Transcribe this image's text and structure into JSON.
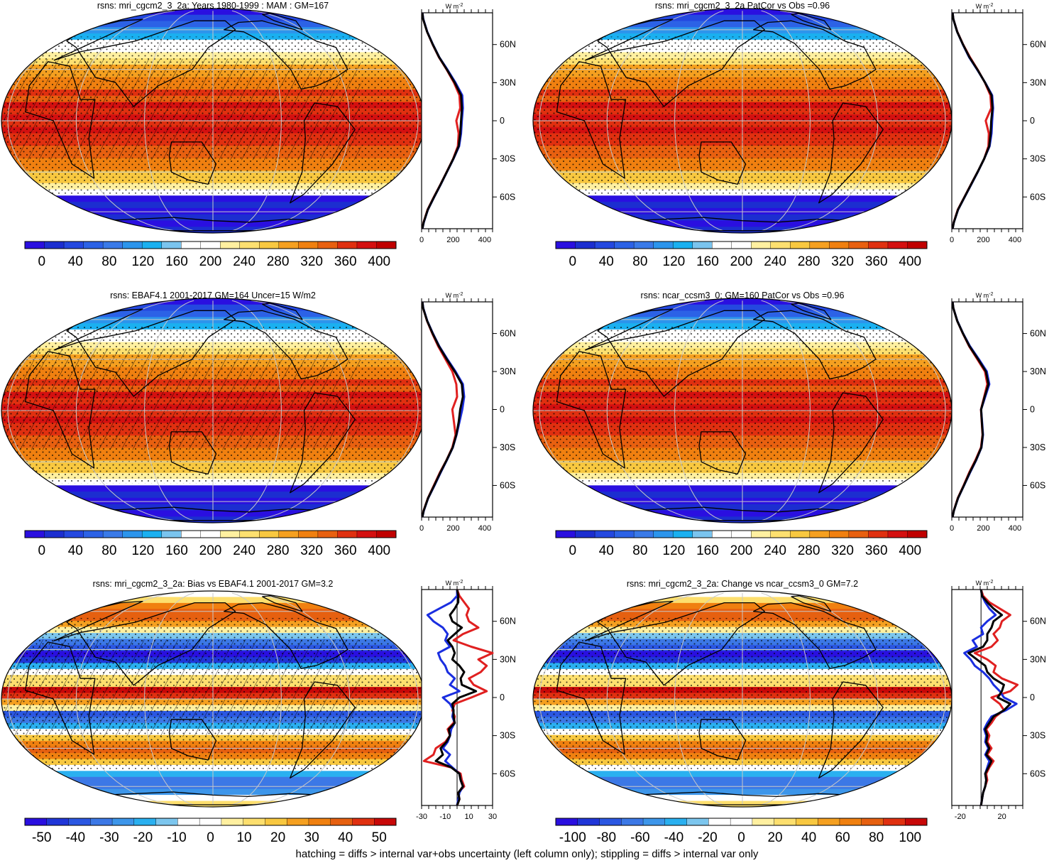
{
  "figure": {
    "footnote": "hatching = diffs > internal var+obs uncertainty (left column only); stippling = diffs > internal var only",
    "profile_units": "W m",
    "profile_units_exp": "-2"
  },
  "palette": {
    "abs": [
      "#2a0fe0",
      "#1c2ed0",
      "#2448e0",
      "#2c62e6",
      "#3a7ae8",
      "#2c95ec",
      "#1ab0f0",
      "#7ac4ee",
      "#ffffff",
      "#ffffff",
      "#fff0a0",
      "#fde070",
      "#f8c840",
      "#f5a020",
      "#f08010",
      "#e86010",
      "#e03010",
      "#d41010",
      "#c00000"
    ],
    "diff": [
      "#2a0fe0",
      "#2036d8",
      "#2b57e2",
      "#3c78e6",
      "#3d96ea",
      "#2ab0f0",
      "#7cc6ee",
      "#ffffff",
      "#ffffff",
      "#fff0a0",
      "#fddf6e",
      "#f8c840",
      "#f5a020",
      "#f08010",
      "#e66010",
      "#e03010",
      "#c80808"
    ]
  },
  "chart_data": [
    {
      "type": "heatmap",
      "id": "p1",
      "title": "rsns: mri_cgcm2_3_2a: Years 1980-1999 : MAM : GM=167",
      "colorbar": {
        "ticks": [
          "0",
          "40",
          "80",
          "120",
          "160",
          "200",
          "240",
          "280",
          "320",
          "360",
          "400"
        ],
        "vmin": -20,
        "vmax": 420
      },
      "hatched": true,
      "profile": {
        "xticks": [
          "0",
          "200",
          "400"
        ],
        "xlim": [
          0,
          450
        ],
        "yticks": [
          "60N",
          "30N",
          "0",
          "30S",
          "60S"
        ],
        "ylim": [
          -85,
          85
        ],
        "lat": [
          -85,
          -80,
          -70,
          -60,
          -50,
          -40,
          -30,
          -20,
          -10,
          0,
          10,
          20,
          30,
          40,
          50,
          60,
          70,
          80,
          85
        ],
        "series": [
          {
            "color": "#e02020",
            "values": [
              5,
              12,
              38,
              78,
              120,
              160,
              200,
              230,
              235,
              220,
              245,
              240,
              205,
              160,
              110,
              70,
              35,
              10,
              5
            ]
          },
          {
            "color": "#1a2ee0",
            "values": [
              5,
              14,
              40,
              80,
              122,
              162,
              202,
              238,
              250,
              255,
              262,
              258,
              215,
              165,
              112,
              72,
              36,
              11,
              5
            ]
          },
          {
            "color": "#000000",
            "values": [
              5,
              13,
              39,
              79,
              121,
              161,
              201,
              235,
              245,
              250,
              255,
              250,
              210,
              162,
              111,
              71,
              35,
              10,
              5
            ]
          }
        ]
      }
    },
    {
      "type": "heatmap",
      "id": "p2",
      "title": "rsns: mri_cgcm2_3_2a PatCor vs Obs =0.96",
      "colorbar": {
        "ticks": [
          "0",
          "40",
          "80",
          "120",
          "160",
          "200",
          "240",
          "280",
          "320",
          "360",
          "400"
        ],
        "vmin": -20,
        "vmax": 420
      },
      "hatched": false,
      "profile": {
        "xticks": [
          "0",
          "200",
          "400"
        ],
        "xlim": [
          0,
          450
        ],
        "yticks": [
          "60N",
          "30N",
          "0",
          "30S",
          "60S"
        ],
        "ylim": [
          -85,
          85
        ],
        "lat": [
          -85,
          -80,
          -70,
          -60,
          -50,
          -40,
          -30,
          -20,
          -10,
          0,
          10,
          20,
          30,
          40,
          50,
          60,
          70,
          80,
          85
        ],
        "series": [
          {
            "color": "#e02020",
            "values": [
              5,
              12,
              38,
              80,
              122,
              165,
              205,
              232,
              235,
              215,
              250,
              245,
              210,
              165,
              115,
              72,
              35,
              10,
              5
            ]
          },
          {
            "color": "#1a2ee0",
            "values": [
              5,
              13,
              40,
              82,
              124,
              166,
              205,
              240,
              252,
              256,
              262,
              256,
              212,
              162,
              110,
              70,
              34,
              10,
              5
            ]
          },
          {
            "color": "#000000",
            "values": [
              5,
              13,
              39,
              81,
              123,
              165,
              205,
              237,
              246,
              250,
              258,
              252,
              211,
              164,
              112,
              71,
              34,
              10,
              5
            ]
          }
        ]
      }
    },
    {
      "type": "heatmap",
      "id": "p3",
      "title": "rsns: EBAF4.1 2001-2017 GM=164 Uncer=15 W/m2",
      "colorbar": {
        "ticks": [
          "0",
          "40",
          "80",
          "120",
          "160",
          "200",
          "240",
          "280",
          "320",
          "360",
          "400"
        ],
        "vmin": -20,
        "vmax": 420
      },
      "hatched": true,
      "profile": {
        "xticks": [
          "0",
          "200",
          "400"
        ],
        "xlim": [
          0,
          450
        ],
        "yticks": [
          "60N",
          "30N",
          "0",
          "30S",
          "60S"
        ],
        "ylim": [
          -85,
          85
        ],
        "lat": [
          -85,
          -80,
          -70,
          -60,
          -50,
          -40,
          -30,
          -20,
          -10,
          0,
          10,
          20,
          30,
          40,
          50,
          60,
          70,
          80,
          85
        ],
        "series": [
          {
            "color": "#e02020",
            "values": [
              5,
              12,
              40,
              78,
              115,
              158,
              195,
              215,
              205,
              195,
              225,
              220,
              195,
              150,
              105,
              68,
              34,
              10,
              5
            ]
          },
          {
            "color": "#1a2ee0",
            "values": [
              5,
              14,
              42,
              82,
              120,
              160,
              198,
              222,
              240,
              258,
              270,
              262,
              215,
              162,
              112,
              72,
              36,
              11,
              5
            ]
          },
          {
            "color": "#000000",
            "values": [
              5,
              13,
              41,
              80,
              118,
              159,
              197,
              220,
              235,
              245,
              262,
              255,
              210,
              158,
              110,
              70,
              35,
              10,
              5
            ]
          }
        ]
      }
    },
    {
      "type": "heatmap",
      "id": "p4",
      "title": "rsns: ncar_ccsm3_0: GM=160 PatCor vs Obs =0.96",
      "colorbar": {
        "ticks": [
          "0",
          "40",
          "80",
          "120",
          "160",
          "200",
          "240",
          "280",
          "320",
          "360",
          "400"
        ],
        "vmin": -20,
        "vmax": 420
      },
      "hatched": false,
      "profile": {
        "xticks": [
          "0",
          "200",
          "400"
        ],
        "xlim": [
          0,
          450
        ],
        "yticks": [
          "60N",
          "30N",
          "0",
          "30S",
          "60S"
        ],
        "ylim": [
          -85,
          85
        ],
        "lat": [
          -85,
          -80,
          -70,
          -60,
          -50,
          -40,
          -30,
          -20,
          -10,
          0,
          10,
          20,
          30,
          40,
          50,
          60,
          70,
          80,
          85
        ],
        "series": [
          {
            "color": "#e02020",
            "values": [
              5,
              12,
              38,
              75,
              110,
              150,
              185,
              195,
              190,
              185,
              205,
              225,
              210,
              160,
              110,
              70,
              34,
              10,
              5
            ]
          },
          {
            "color": "#1a2ee0",
            "values": [
              5,
              13,
              40,
              78,
              115,
              155,
              188,
              198,
              192,
              186,
              212,
              238,
              222,
              170,
              115,
              72,
              35,
              10,
              5
            ]
          },
          {
            "color": "#000000",
            "values": [
              5,
              13,
              39,
              77,
              113,
              153,
              187,
              196,
              191,
              186,
              208,
              232,
              216,
              165,
              112,
              71,
              34,
              10,
              5
            ]
          }
        ]
      }
    },
    {
      "type": "heatmap",
      "id": "p5",
      "title": "rsns: mri_cgcm2_3_2a: Bias vs EBAF4.1 2001-2017 GM=3.2",
      "colorbar": {
        "ticks": [
          "-50",
          "-40",
          "-30",
          "-20",
          "-10",
          "0",
          "10",
          "20",
          "30",
          "40",
          "50"
        ],
        "vmin": -55,
        "vmax": 55
      },
      "hatched": true,
      "profile": {
        "xticks": [
          "-30",
          "-10",
          "10",
          "30"
        ],
        "xlim": [
          -30,
          30
        ],
        "yticks": [
          "60N",
          "30N",
          "0",
          "30S",
          "60S"
        ],
        "ylim": [
          -85,
          85
        ],
        "lat": [
          -85,
          -80,
          -75,
          -70,
          -65,
          -60,
          -55,
          -50,
          -45,
          -40,
          -35,
          -30,
          -25,
          -20,
          -15,
          -10,
          -5,
          0,
          5,
          10,
          15,
          20,
          25,
          30,
          35,
          40,
          45,
          50,
          55,
          60,
          65,
          70,
          75,
          80,
          85
        ],
        "series": [
          {
            "color": "#e02020",
            "values": [
              0,
              2,
              1,
              6,
              4,
              3,
              -5,
              -28,
              -20,
              -18,
              -10,
              -6,
              -8,
              -3,
              -2,
              -4,
              -2,
              12,
              25,
              14,
              10,
              20,
              25,
              18,
              30,
              12,
              -3,
              5,
              18,
              10,
              8,
              10,
              6,
              2,
              0
            ]
          },
          {
            "color": "#1a2ee0",
            "values": [
              0,
              1,
              2,
              5,
              3,
              2,
              -4,
              -10,
              -6,
              -12,
              -8,
              -6,
              -5,
              -2,
              -4,
              -3,
              -6,
              -12,
              2,
              -6,
              -2,
              -8,
              -10,
              -14,
              -16,
              -6,
              -10,
              -8,
              -12,
              -20,
              -25,
              -15,
              -5,
              0,
              0
            ]
          },
          {
            "color": "#000000",
            "values": [
              0,
              2,
              1,
              5,
              3,
              2,
              -5,
              -18,
              -12,
              -14,
              -9,
              -6,
              -7,
              -2,
              -3,
              -3,
              -4,
              2,
              16,
              4,
              3,
              6,
              2,
              -4,
              -2,
              -4,
              -8,
              -2,
              4,
              -4,
              -6,
              -2,
              1,
              1,
              0
            ]
          }
        ]
      }
    },
    {
      "type": "heatmap",
      "id": "p6",
      "title": "rsns: mri_cgcm2_3_2a: Change vs ncar_ccsm3_0 GM=7.2",
      "colorbar": {
        "ticks": [
          "-100",
          "-80",
          "-60",
          "-40",
          "-20",
          "0",
          "20",
          "40",
          "60",
          "80",
          "100"
        ],
        "vmin": -110,
        "vmax": 110
      },
      "hatched": false,
      "profile": {
        "xticks": [
          "-20",
          "20"
        ],
        "xlim": [
          -28,
          40
        ],
        "yticks": [
          "60N",
          "30N",
          "0",
          "30S",
          "60S"
        ],
        "ylim": [
          -85,
          85
        ],
        "lat": [
          -85,
          -80,
          -75,
          -70,
          -65,
          -60,
          -55,
          -50,
          -45,
          -40,
          -35,
          -30,
          -25,
          -20,
          -15,
          -10,
          -5,
          0,
          5,
          10,
          15,
          20,
          25,
          30,
          35,
          40,
          45,
          50,
          55,
          60,
          65,
          70,
          75,
          80,
          85
        ],
        "series": [
          {
            "color": "#e02020",
            "values": [
              0,
              1,
              2,
              4,
              6,
              5,
              8,
              12,
              6,
              10,
              6,
              8,
              5,
              10,
              14,
              22,
              18,
              10,
              28,
              35,
              20,
              12,
              14,
              6,
              -6,
              10,
              16,
              12,
              18,
              20,
              28,
              18,
              8,
              2,
              0
            ]
          },
          {
            "color": "#1a2ee0",
            "values": [
              0,
              1,
              2,
              4,
              5,
              4,
              6,
              8,
              4,
              7,
              4,
              5,
              3,
              6,
              10,
              24,
              34,
              22,
              18,
              12,
              8,
              2,
              -6,
              -10,
              -16,
              -4,
              -8,
              2,
              0,
              6,
              14,
              8,
              4,
              1,
              0
            ]
          },
          {
            "color": "#000000",
            "values": [
              0,
              1,
              2,
              4,
              5,
              4,
              7,
              10,
              5,
              8,
              5,
              6,
              4,
              8,
              12,
              22,
              28,
              16,
              20,
              22,
              12,
              6,
              4,
              -4,
              -12,
              2,
              6,
              6,
              10,
              12,
              20,
              12,
              6,
              1,
              0
            ]
          }
        ]
      }
    }
  ]
}
